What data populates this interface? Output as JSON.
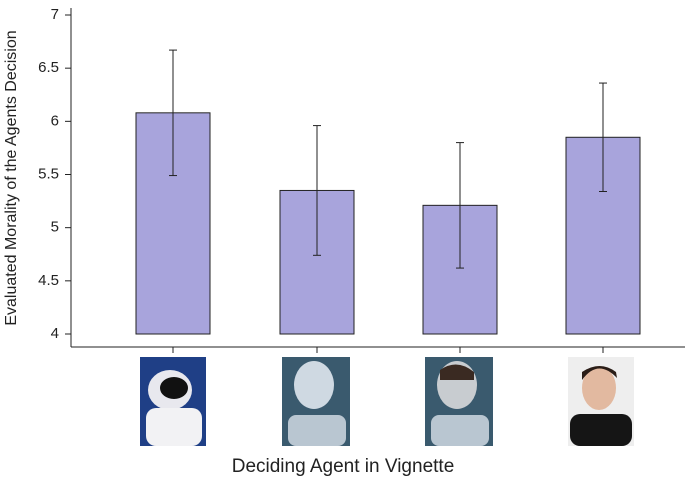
{
  "chart_data": {
    "type": "bar",
    "x_label": "Deciding Agent in Vignette",
    "y_label": "Evaluated Morality of the Agents Decision",
    "categories": [
      null,
      null,
      null,
      null
    ],
    "values": [
      6.08,
      5.35,
      5.21,
      5.85
    ],
    "errors": [
      0.59,
      0.61,
      0.59,
      0.51
    ],
    "color": "#a8a4dc",
    "ylim": [
      4,
      7
    ],
    "yticks": [
      4,
      4.5,
      5,
      5.5,
      6,
      6.5,
      7
    ]
  }
}
